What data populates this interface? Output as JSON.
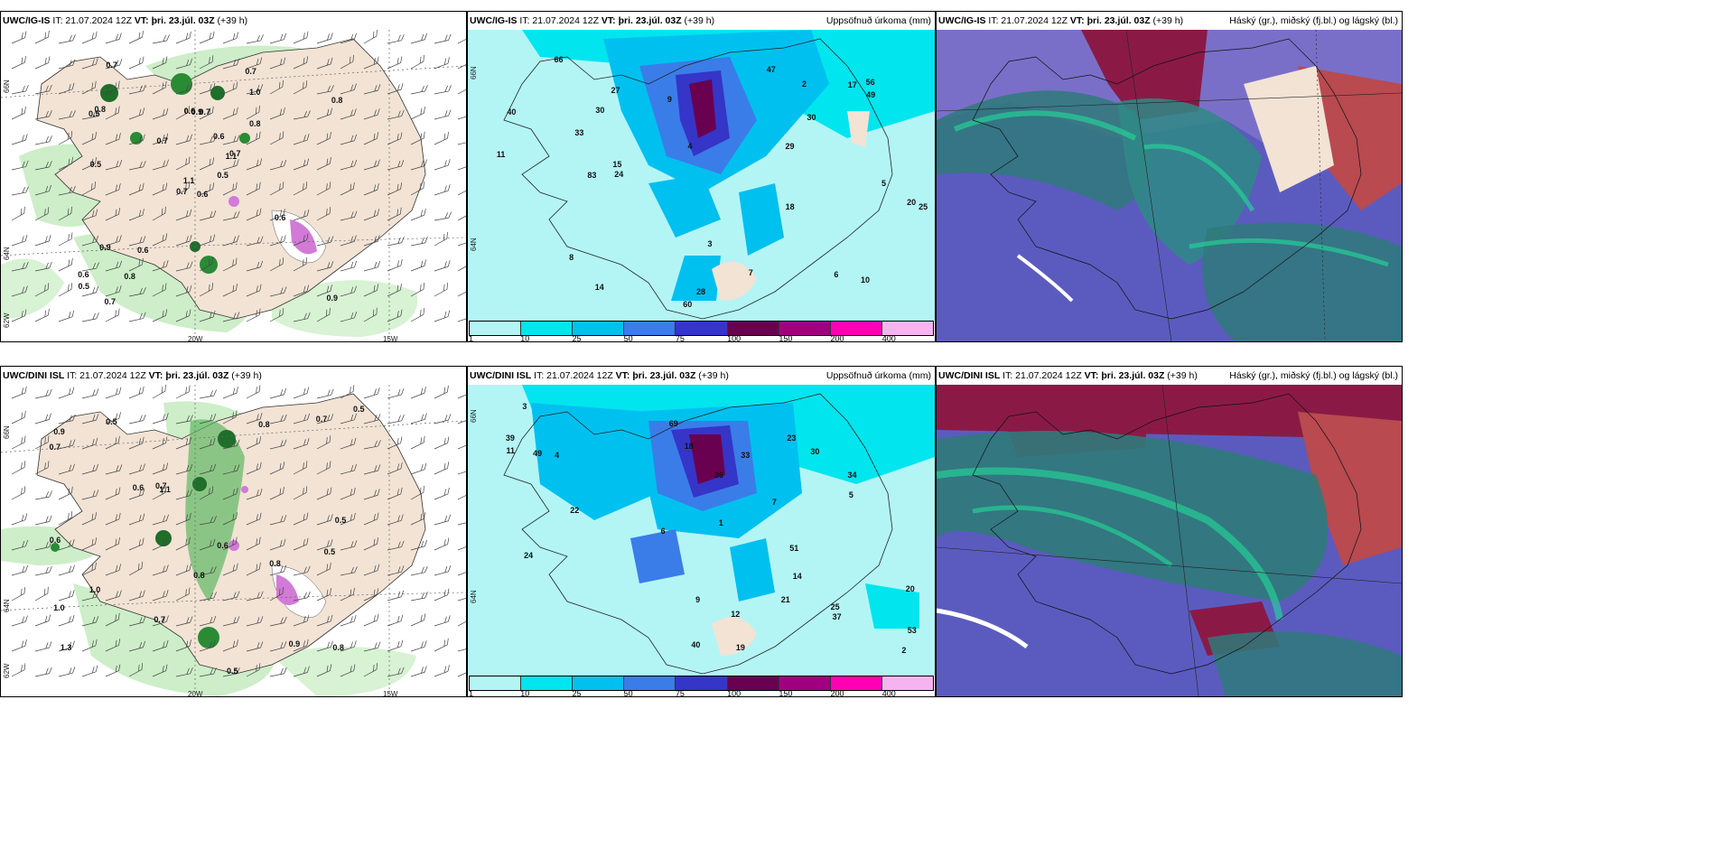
{
  "panels_top": {
    "left_header": {
      "model": "UWC/IG-IS",
      "it": "IT: 21.07.2024 12Z",
      "vt_label": "VT:",
      "vt": "þri. 23.júl. 03Z",
      "lead": "(+39 h)"
    },
    "mid_header": {
      "model": "UWC/IG-IS",
      "it": "IT: 21.07.2024 12Z",
      "vt_label": "VT:",
      "vt": "þri. 23.júl. 03Z",
      "lead": "(+39 h)",
      "right": "Uppsöfnuð úrkoma (mm)"
    },
    "right_header": {
      "model": "UWC/IG-IS",
      "it": "IT: 21.07.2024 12Z",
      "vt_label": "VT:",
      "vt": "þri. 23.júl. 03Z",
      "lead": "(+39 h)",
      "right": "Háský (gr.), miðský (fj.bl.) og lágský (bl.)"
    }
  },
  "panels_bottom": {
    "left_header": {
      "model": "UWC/DINI ISL",
      "it": "IT: 21.07.2024 12Z",
      "vt_label": "VT:",
      "vt": "þri. 23.júl. 03Z",
      "lead": "(+39 h)"
    },
    "mid_header": {
      "model": "UWC/DINI ISL",
      "it": "IT: 21.07.2024 12Z",
      "vt_label": "VT:",
      "vt": "þri. 23.júl. 03Z",
      "lead": "(+39 h)",
      "right": "Uppsöfnuð úrkoma (mm)"
    },
    "right_header": {
      "model": "UWC/DINI ISL",
      "it": "IT: 21.07.2024 12Z",
      "vt_label": "VT:",
      "vt": "þri. 23.júl. 03Z",
      "lead": "(+39 h)",
      "right": "Háský (gr.), miðský (fj.bl.) og lágský (bl.)"
    }
  },
  "axis_labels": {
    "lon_20": "20W",
    "lon_15": "15W",
    "lat_66": "66N",
    "lat_64": "64N",
    "lat_62": "62W"
  },
  "colorbar": {
    "ticks": [
      "1",
      "10",
      "25",
      "50",
      "75",
      "100",
      "150",
      "200",
      "400"
    ],
    "colors": [
      "#b3f5f5",
      "#00e5ee",
      "#00c0f0",
      "#3a7de8",
      "#3535c8",
      "#6a0050",
      "#a00080",
      "#ff00b4",
      "#f5b4f0"
    ]
  },
  "precip_top_labels": [
    "0.6",
    "0.5",
    "1.1",
    "0.6",
    "1.1",
    "0.6",
    "0.7",
    "0.7",
    "1.0",
    "0.5",
    "0.7",
    "0.9",
    "0.5",
    "0.8",
    "0.7",
    "0.8",
    "0.7",
    "0.6",
    "0.6",
    "0.9",
    "0.7",
    "0.5",
    "0.8",
    "0.9",
    "0.7",
    "0.6",
    "0.8"
  ],
  "precip_bottom_labels": [
    "0.8",
    "0.5",
    "1.3",
    "0.5",
    "1.1",
    "0.9",
    "1.0",
    "0.8",
    "0.6",
    "0.5",
    "0.7",
    "0.6",
    "0.9",
    "0.8",
    "0.7",
    "0.5",
    "0.8",
    "0.6",
    "0.7",
    "1.0",
    "0.5",
    "0.7"
  ],
  "accum_top_labels": [
    "40",
    "30",
    "29",
    "28",
    "17",
    "60",
    "18",
    "24",
    "56",
    "25",
    "20",
    "27",
    "30",
    "8",
    "11",
    "14",
    "15",
    "9",
    "10",
    "7",
    "6",
    "5",
    "4",
    "3",
    "2",
    "33",
    "49",
    "47",
    "66",
    "83"
  ],
  "accum_bottom_labels": [
    "36",
    "37",
    "39",
    "34",
    "40",
    "18",
    "19",
    "23",
    "22",
    "24",
    "25",
    "33",
    "51",
    "49",
    "53",
    "30",
    "20",
    "21",
    "12",
    "14",
    "11",
    "9",
    "7",
    "6",
    "5",
    "4",
    "3",
    "2",
    "1",
    "69"
  ]
}
